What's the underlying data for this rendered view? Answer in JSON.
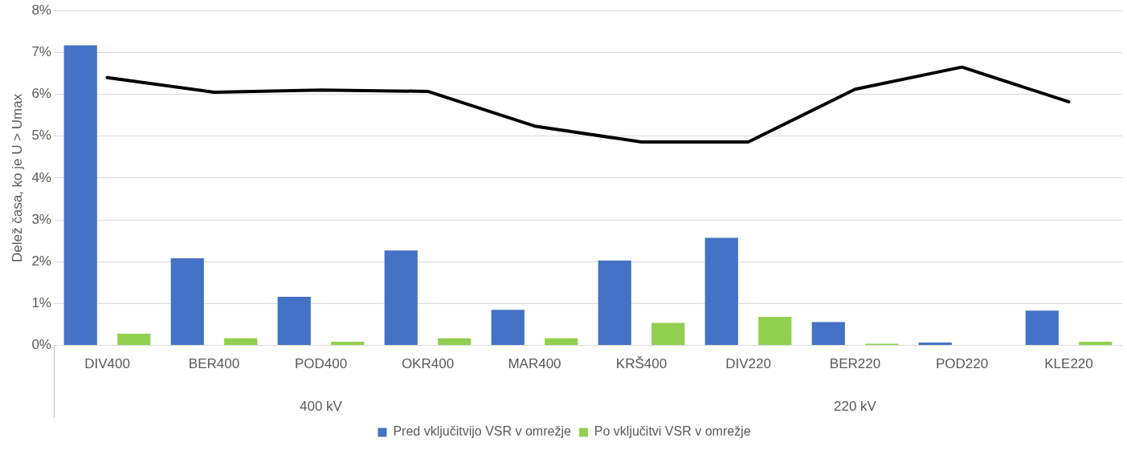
{
  "chart_data": {
    "type": "bar",
    "ylabel": "Delež časa, ko je U > Umax",
    "categories": [
      "DIV400",
      "BER400",
      "POD400",
      "OKR400",
      "MAR400",
      "KRŠ400",
      "DIV220",
      "BER220",
      "POD220",
      "KLE220"
    ],
    "series": [
      {
        "name": "Pred vključitvijo VSR v omrežje",
        "color": "#4472c4",
        "values": [
          7.17,
          2.08,
          1.16,
          2.27,
          0.85,
          2.03,
          2.57,
          0.56,
          0.07,
          0.83
        ]
      },
      {
        "name": "Po vključitvi VSR v omrežje",
        "color": "#92d050",
        "values": [
          0.28,
          0.17,
          0.09,
          0.17,
          0.17,
          0.54,
          0.68,
          0.04,
          0,
          0.09
        ]
      },
      {
        "type": "line",
        "color": "#000000",
        "values": [
          6.4,
          6.05,
          6.1,
          6.07,
          5.24,
          4.86,
          4.86,
          6.12,
          6.65,
          5.82
        ]
      }
    ],
    "ylim": [
      0,
      8
    ],
    "yticks": [
      {
        "value": 0,
        "label": "0%"
      },
      {
        "value": 1,
        "label": "1%"
      },
      {
        "value": 2,
        "label": "2%"
      },
      {
        "value": 3,
        "label": "3%"
      },
      {
        "value": 4,
        "label": "4%"
      },
      {
        "value": 5,
        "label": "5%"
      },
      {
        "value": 6,
        "label": "6%"
      },
      {
        "value": 7,
        "label": "7%"
      },
      {
        "value": 8,
        "label": "8%"
      }
    ],
    "annotations": [
      "400 kV",
      "220 kV"
    ],
    "grid": "y",
    "legend": "bottom",
    "marker": "none",
    "line_style": "solid"
  }
}
